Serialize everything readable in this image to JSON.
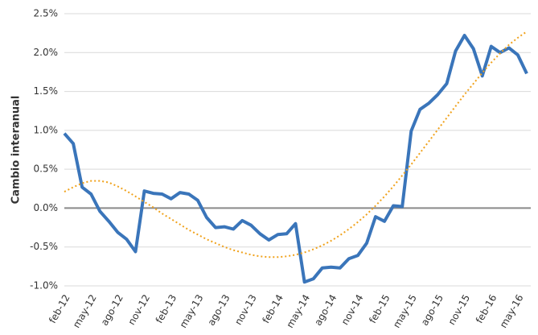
{
  "chart_data": {
    "type": "line",
    "y_label": "Cambio interanual",
    "categories": [
      "feb-12",
      null,
      null,
      "may-12",
      null,
      null,
      "ago-12",
      null,
      null,
      "nov-12",
      null,
      null,
      "feb-13",
      null,
      null,
      "may-13",
      null,
      null,
      "ago-13",
      null,
      null,
      "nov-13",
      null,
      null,
      "feb-14",
      null,
      null,
      "may-14",
      null,
      null,
      "ago-14",
      null,
      null,
      "nov-14",
      null,
      null,
      "feb-15",
      null,
      null,
      "may-15",
      null,
      null,
      "ago-15",
      null,
      null,
      "nov-15",
      null,
      null,
      "feb-16",
      null,
      null,
      "may-16",
      null
    ],
    "series": [
      {
        "color": "#3a75ba",
        "style": "solid",
        "values": [
          0.96,
          0.83,
          0.27,
          0.18,
          -0.04,
          -0.17,
          -0.31,
          -0.4,
          -0.56,
          0.22,
          0.19,
          0.18,
          0.12,
          0.2,
          0.18,
          0.1,
          -0.12,
          -0.25,
          -0.24,
          -0.27,
          -0.16,
          -0.22,
          -0.33,
          -0.41,
          -0.34,
          -0.33,
          -0.2,
          -0.95,
          -0.91,
          -0.77,
          -0.76,
          -0.77,
          -0.65,
          -0.61,
          -0.45,
          -0.11,
          -0.17,
          0.03,
          0.02,
          0.99,
          1.27,
          1.35,
          1.46,
          1.6,
          2.02,
          2.22,
          2.05,
          1.7,
          2.08,
          2.0,
          2.06,
          1.97,
          1.73
        ]
      },
      {
        "color": "#f0a21c",
        "style": "dotted",
        "values": [
          0.21,
          0.27,
          0.32,
          0.35,
          0.35,
          0.33,
          0.28,
          0.22,
          0.15,
          0.08,
          0.01,
          -0.07,
          -0.14,
          -0.21,
          -0.28,
          -0.34,
          -0.4,
          -0.45,
          -0.5,
          -0.54,
          -0.57,
          -0.6,
          -0.62,
          -0.63,
          -0.63,
          -0.62,
          -0.6,
          -0.57,
          -0.53,
          -0.48,
          -0.42,
          -0.35,
          -0.27,
          -0.18,
          -0.08,
          0.03,
          0.15,
          0.28,
          0.42,
          0.56,
          0.71,
          0.86,
          1.01,
          1.16,
          1.31,
          1.46,
          1.6,
          1.74,
          1.87,
          1.99,
          2.1,
          2.19,
          2.27
        ]
      }
    ],
    "ylim": [
      -1.0,
      2.5
    ],
    "yticks": [
      {
        "value": -1.0,
        "label": "-1.0%"
      },
      {
        "value": -0.5,
        "label": "-0.5%"
      },
      {
        "value": 0,
        "label": "0.0%"
      },
      {
        "value": 0.5,
        "label": "0.5%"
      },
      {
        "value": 1.0,
        "label": "1.0%"
      },
      {
        "value": 1.5,
        "label": "1.5%"
      },
      {
        "value": 2.0,
        "label": "2.0%"
      },
      {
        "value": 2.5,
        "label": "2.5%"
      }
    ],
    "grid": true
  }
}
